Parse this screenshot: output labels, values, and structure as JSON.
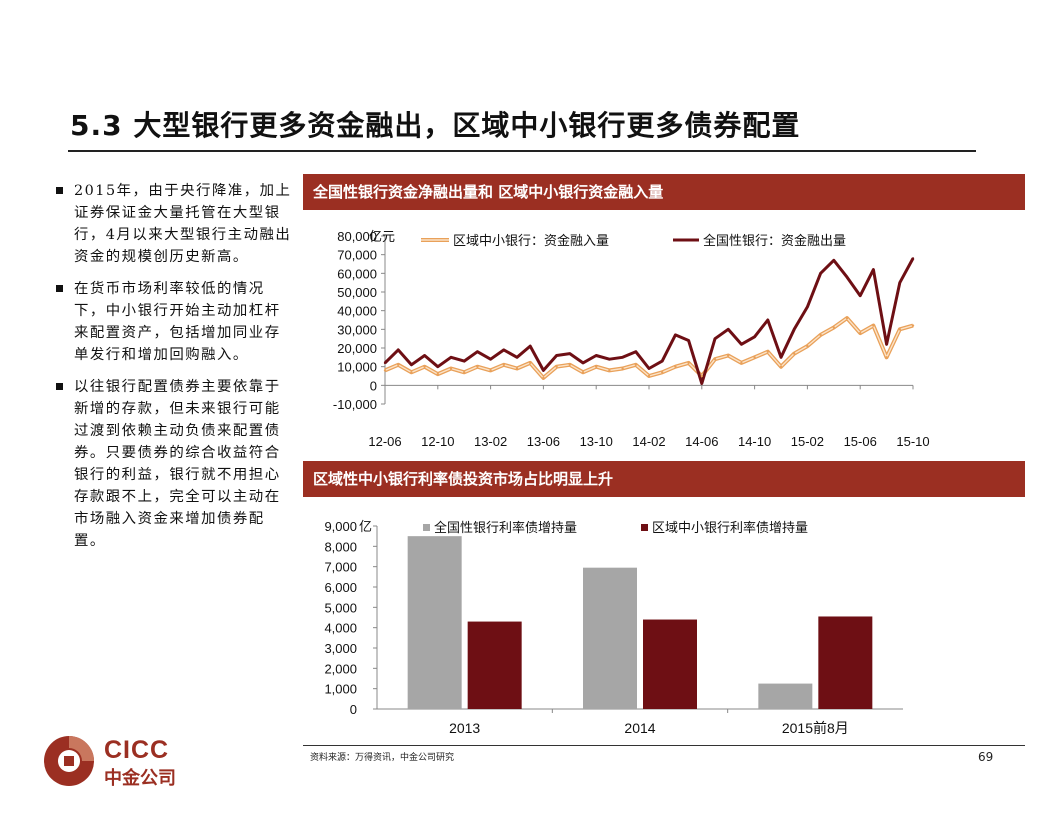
{
  "title": "5.3 大型银行更多资金融出，区域中小银行更多债券配置",
  "bullets": [
    "2015年，由于央行降准，加上证券保证金大量托管在大型银行，4月以来大型银行主动融出资金的规模创历史新高。",
    "在货币市场利率较低的情况下，中小银行开始主动加杠杆来配置资产，包括增加同业存单发行和增加回购融入。",
    "以往银行配置债券主要依靠于新增的存款，但未来银行可能过渡到依赖主动负债来配置债券。只要债券的综合收益符合银行的利益，银行就不用担心存款跟不上，完全可以主动在市场融入资金来增加债券配置。"
  ],
  "source": "资料来源：万得资讯，中金公司研究",
  "page_number": "69",
  "logo": {
    "en": "CICC",
    "cn": "中金公司"
  },
  "colors": {
    "brand": "#9b2f22",
    "national_line": "#6e0f14",
    "regional_line": "#e9a15a",
    "gray_bar": "#a6a6a6",
    "dark_bar": "#6e0f14"
  },
  "chart_data": [
    {
      "type": "line",
      "title": "全国性银行资金净融出量和 区域中小银行资金融入量",
      "unit_label": "亿元",
      "ylim": [
        -10000,
        80000
      ],
      "yticks": [
        "80,000",
        "70,000",
        "60,000",
        "50,000",
        "40,000",
        "30,000",
        "20,000",
        "10,000",
        "0",
        "-10,000"
      ],
      "xticks": [
        "12-06",
        "12-10",
        "13-02",
        "13-06",
        "13-10",
        "14-02",
        "14-06",
        "14-10",
        "15-02",
        "15-06",
        "15-10"
      ],
      "legend_position": "top",
      "series": [
        {
          "name": "区域中小银行：资金融入量",
          "x": [
            "12-06",
            "12-07",
            "12-08",
            "12-09",
            "12-10",
            "12-11",
            "12-12",
            "13-01",
            "13-02",
            "13-03",
            "13-04",
            "13-05",
            "13-06",
            "13-07",
            "13-08",
            "13-09",
            "13-10",
            "13-11",
            "13-12",
            "14-01",
            "14-02",
            "14-03",
            "14-04",
            "14-05",
            "14-06",
            "14-07",
            "14-08",
            "14-09",
            "14-10",
            "14-11",
            "14-12",
            "15-01",
            "15-02",
            "15-03",
            "15-04",
            "15-05",
            "15-06",
            "15-07",
            "15-08",
            "15-09",
            "15-10"
          ],
          "values": [
            8000,
            11000,
            7000,
            10000,
            6000,
            9000,
            7000,
            10000,
            8000,
            11000,
            9000,
            12000,
            4000,
            10000,
            11000,
            7000,
            10000,
            8000,
            9000,
            11000,
            5000,
            7000,
            10000,
            12000,
            5000,
            14000,
            16000,
            12000,
            15000,
            18000,
            10000,
            17000,
            21000,
            27000,
            31000,
            36000,
            28000,
            32000,
            15000,
            30000,
            32000
          ]
        },
        {
          "name": "全国性银行：资金融出量",
          "x": [
            "12-06",
            "12-07",
            "12-08",
            "12-09",
            "12-10",
            "12-11",
            "12-12",
            "13-01",
            "13-02",
            "13-03",
            "13-04",
            "13-05",
            "13-06",
            "13-07",
            "13-08",
            "13-09",
            "13-10",
            "13-11",
            "13-12",
            "14-01",
            "14-02",
            "14-03",
            "14-04",
            "14-05",
            "14-06",
            "14-07",
            "14-08",
            "14-09",
            "14-10",
            "14-11",
            "14-12",
            "15-01",
            "15-02",
            "15-03",
            "15-04",
            "15-05",
            "15-06",
            "15-07",
            "15-08",
            "15-09",
            "15-10"
          ],
          "values": [
            12000,
            19000,
            11000,
            16000,
            10000,
            15000,
            13000,
            18000,
            14000,
            19000,
            15000,
            21000,
            8000,
            16000,
            17000,
            12000,
            16000,
            14000,
            15000,
            18000,
            9000,
            13000,
            27000,
            24000,
            1000,
            25000,
            30000,
            22000,
            26000,
            35000,
            15000,
            30000,
            42000,
            60000,
            67000,
            58000,
            48000,
            62000,
            22000,
            55000,
            68000
          ]
        }
      ]
    },
    {
      "type": "bar",
      "title": "区域性中小银行利率债投资市场占比明显上升",
      "unit_label": "亿",
      "ylim": [
        0,
        9000
      ],
      "yticks": [
        "9,000",
        "8,000",
        "7,000",
        "6,000",
        "5,000",
        "4,000",
        "3,000",
        "2,000",
        "1,000",
        "0"
      ],
      "categories": [
        "2013",
        "2014",
        "2015前8月"
      ],
      "legend_position": "top",
      "series": [
        {
          "name": "全国性银行利率债增持量",
          "values": [
            8500,
            6950,
            1250
          ]
        },
        {
          "name": "区域中小银行利率债增持量",
          "values": [
            4300,
            4400,
            4550
          ]
        }
      ]
    }
  ]
}
